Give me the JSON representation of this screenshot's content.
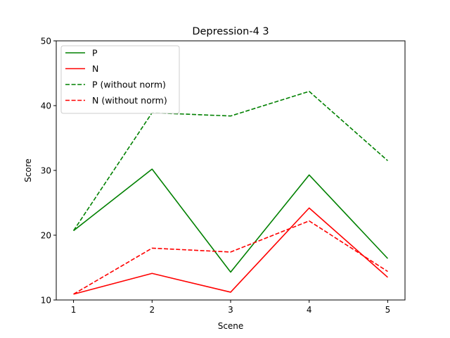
{
  "chart_data": {
    "type": "line",
    "title": "Depression-4 3",
    "xlabel": "Scene",
    "ylabel": "Score",
    "x": [
      1,
      2,
      3,
      4,
      5
    ],
    "xlim": [
      0.78,
      5.22
    ],
    "ylim": [
      10,
      50
    ],
    "xticks": [
      "1",
      "2",
      "3",
      "4",
      "5"
    ],
    "yticks": [
      "10",
      "20",
      "30",
      "40",
      "50"
    ],
    "grid": false,
    "legend_position": "top-left",
    "series": [
      {
        "name": "P",
        "values": [
          20.7,
          30.2,
          14.3,
          29.3,
          16.4
        ],
        "color": "#008000",
        "style": "solid"
      },
      {
        "name": "N",
        "values": [
          10.9,
          14.1,
          11.2,
          24.2,
          13.5
        ],
        "color": "#ff0000",
        "style": "solid"
      },
      {
        "name": "P (without norm)",
        "values": [
          20.7,
          38.9,
          38.4,
          42.2,
          31.5
        ],
        "color": "#008000",
        "style": "dashed"
      },
      {
        "name": "N (without norm)",
        "values": [
          10.9,
          18.0,
          17.4,
          22.2,
          14.4
        ],
        "color": "#ff0000",
        "style": "dashed"
      }
    ]
  }
}
